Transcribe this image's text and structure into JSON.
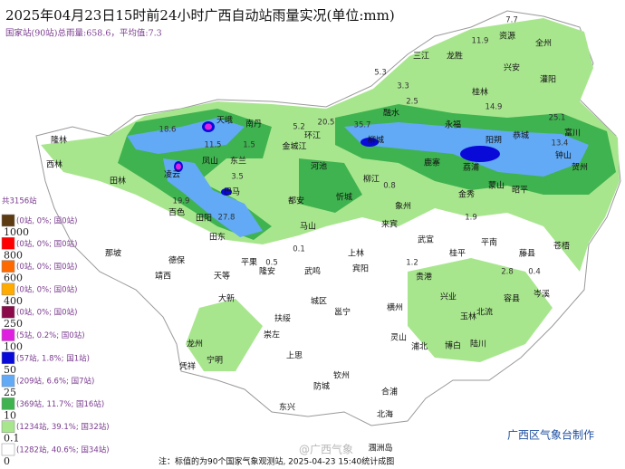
{
  "header": {
    "title": "2025年04月23日15时前24小时广西自动站雨量实况(单位:mm)",
    "subtitle": "国家站(90站)总雨量:658.6，平均值:7.3"
  },
  "legend": {
    "total": "共3156站",
    "items": [
      {
        "text": "(0站, 0%; 国0站)",
        "color": "#5c3a12"
      },
      {
        "text": "(0站, 0%; 国0站)",
        "color": "#ff0000"
      },
      {
        "text": "(0站, 0%; 国0站)",
        "color": "#ff6a00"
      },
      {
        "text": "(0站, 0%; 国0站)",
        "color": "#ffab00"
      },
      {
        "text": "(0站, 0%; 国0站)",
        "color": "#8b0a4a"
      },
      {
        "text": "(5站, 0.2%; 国0站)",
        "color": "#e020e0"
      },
      {
        "text": "(57站, 1.8%; 国1站)",
        "color": "#0a0ad8"
      },
      {
        "text": "(209站, 6.6%; 国7站)",
        "color": "#62aaf5"
      },
      {
        "text": "(369站, 11.7%; 国16站)",
        "color": "#3fb34f"
      },
      {
        "text": "(1234站, 39.1%; 国32站)",
        "color": "#a8e68e"
      },
      {
        "text": "(1282站, 40.6%; 国34站)",
        "color": "#ffffff"
      }
    ],
    "breaks": [
      "1000",
      "800",
      "600",
      "400",
      "250",
      "100",
      "50",
      "25",
      "10",
      "0.1",
      "0"
    ]
  },
  "places": [
    "三江",
    "龙胜",
    "资源",
    "全州",
    "兴安",
    "灌阳",
    "桂林",
    "融水",
    "永福",
    "阳朔",
    "恭城",
    "富川",
    "钟山",
    "贺州",
    "天峨",
    "南丹",
    "环江",
    "金城江",
    "河池",
    "柳城",
    "隆林",
    "西林",
    "凌云",
    "凤山",
    "东兰",
    "巴马",
    "田林",
    "百色",
    "田阳",
    "田东",
    "都安",
    "马山",
    "忻城",
    "柳江",
    "象州",
    "来宾",
    "鹿寨",
    "荔浦",
    "蒙山",
    "金秀",
    "昭平",
    "平南",
    "武宣",
    "桂平",
    "藤县",
    "苍梧",
    "岑溪",
    "容县",
    "北流",
    "玉林",
    "陆川",
    "博白",
    "兴业",
    "贵港",
    "横州",
    "灵山",
    "浦北",
    "钦州",
    "合浦",
    "北海",
    "防城",
    "东兴",
    "上思",
    "邕宁",
    "武鸣",
    "宾阳",
    "上林",
    "隆安",
    "平果",
    "扶绥",
    "大新",
    "天等",
    "德保",
    "靖西",
    "那坡",
    "龙州",
    "凭祥",
    "宁明",
    "城区",
    "崇左",
    "涠洲岛"
  ],
  "station_values": [
    "7.7",
    "11.9",
    "5.3",
    "3.3",
    "2.5",
    "14.9",
    "25.1",
    "35.7",
    "13.4",
    "18.6",
    "11.5",
    "1.5",
    "20.5",
    "5.2",
    "27.8",
    "19.9",
    "3.5",
    "0.8",
    "0.5",
    "0.1",
    "1.9",
    "2.8",
    "0.4",
    "1.2"
  ],
  "footer": {
    "note": "注：标值的为90个国家气象观测站, 2025-04-23 15:40统计成图",
    "agency": "广西区气象台制作",
    "watermark": "@广西气象"
  }
}
